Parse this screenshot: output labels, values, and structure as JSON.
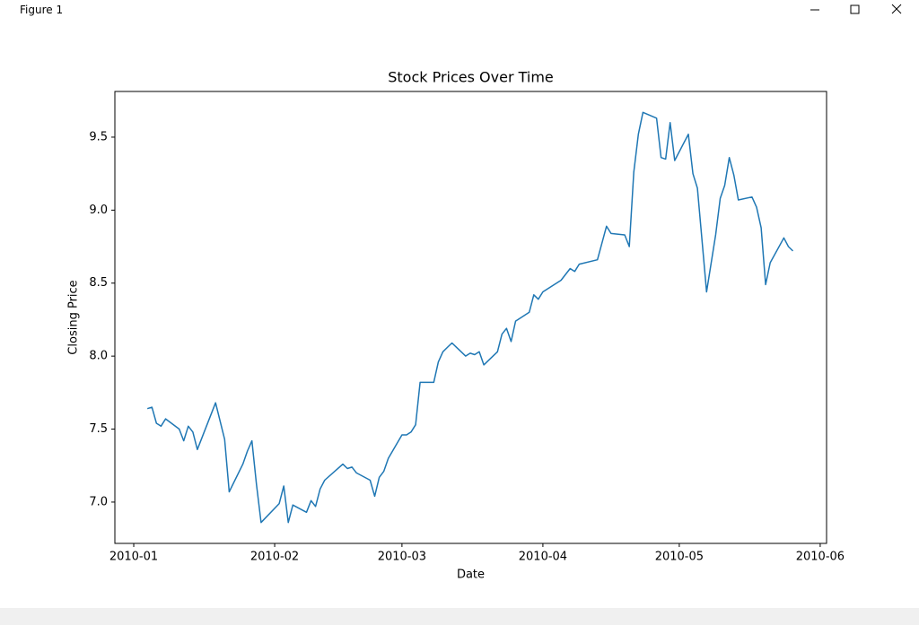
{
  "window": {
    "title": "Figure 1"
  },
  "chart_data": {
    "type": "line",
    "title": "Stock Prices Over Time",
    "x_label": "Date",
    "y_label": "Closing Price",
    "color": "#1f77b4",
    "x": [
      3,
      4,
      5,
      6,
      7,
      10,
      11,
      12,
      13,
      14,
      18,
      20,
      21,
      24,
      25,
      26,
      27,
      28,
      32,
      33,
      34,
      35,
      38,
      39,
      40,
      41,
      42,
      46,
      47,
      48,
      49,
      52,
      53,
      54,
      55,
      56,
      59,
      60,
      61,
      62,
      63,
      66,
      67,
      68,
      69,
      70,
      73,
      74,
      75,
      76,
      77,
      80,
      81,
      82,
      83,
      84,
      87,
      88,
      89,
      90,
      94,
      95,
      96,
      97,
      98,
      102,
      104,
      105,
      108,
      109,
      110,
      111,
      112,
      115,
      116,
      117,
      118,
      119,
      122,
      123,
      124,
      126,
      128,
      129,
      130,
      131,
      132,
      133,
      136,
      137,
      138,
      139,
      140,
      143,
      144,
      145
    ],
    "values": [
      7.64,
      7.65,
      7.54,
      7.52,
      7.57,
      7.5,
      7.42,
      7.52,
      7.48,
      7.36,
      7.68,
      7.43,
      7.07,
      7.26,
      7.35,
      7.42,
      7.12,
      6.86,
      6.99,
      7.11,
      6.86,
      6.98,
      6.93,
      7.01,
      6.97,
      7.09,
      7.15,
      7.26,
      7.23,
      7.24,
      7.2,
      7.15,
      7.04,
      7.17,
      7.21,
      7.3,
      7.46,
      7.46,
      7.48,
      7.53,
      7.82,
      7.82,
      7.96,
      8.03,
      8.06,
      8.09,
      8.0,
      8.02,
      8.01,
      8.03,
      7.94,
      8.03,
      8.15,
      8.19,
      8.1,
      8.24,
      8.3,
      8.42,
      8.39,
      8.44,
      8.52,
      8.56,
      8.6,
      8.58,
      8.63,
      8.66,
      8.89,
      8.84,
      8.83,
      8.75,
      9.26,
      9.52,
      9.67,
      9.63,
      9.36,
      9.35,
      9.6,
      9.34,
      9.52,
      9.25,
      9.15,
      8.44,
      8.83,
      9.08,
      9.17,
      9.36,
      9.24,
      9.07,
      9.09,
      9.02,
      8.88,
      8.49,
      8.64,
      8.81,
      8.75,
      8.72
    ],
    "xlim": [
      -4.15,
      152.4
    ],
    "xticks": [
      {
        "value": 0,
        "label": "2010-01"
      },
      {
        "value": 31,
        "label": "2010-02"
      },
      {
        "value": 59,
        "label": "2010-03"
      },
      {
        "value": 90,
        "label": "2010-04"
      },
      {
        "value": 120,
        "label": "2010-05"
      },
      {
        "value": 151,
        "label": "2010-06"
      }
    ],
    "ylim": [
      6.717,
      9.813
    ],
    "yticks": [
      {
        "value": 7,
        "label": "7.0"
      },
      7.5,
      {
        "value": 8,
        "label": "8.0"
      },
      8.5,
      {
        "value": 9,
        "label": "9.0"
      },
      9.5
    ]
  }
}
